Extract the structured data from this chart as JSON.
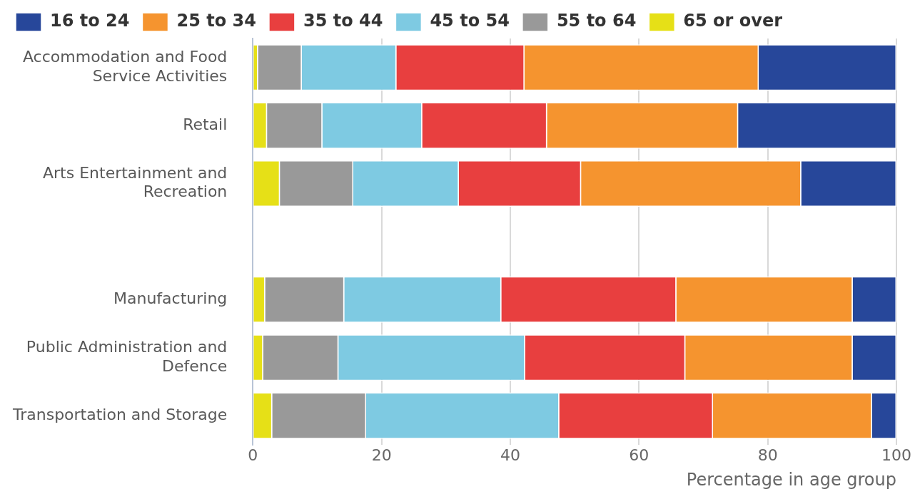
{
  "chart_data": {
    "type": "bar",
    "orientation": "horizontal",
    "stacked": true,
    "categories": [
      "Accommodation and Food Service Activities",
      "Retail",
      "Arts Entertainment and Recreation",
      null,
      "Manufacturing",
      "Public Administration and Defence",
      "Transportation and Storage"
    ],
    "series": [
      {
        "name": "65 or over",
        "color": "#e6e017",
        "values": [
          0.8,
          2.2,
          4.2,
          null,
          1.9,
          1.6,
          3.0
        ]
      },
      {
        "name": "55 to 64",
        "color": "#999999",
        "values": [
          6.8,
          8.6,
          11.4,
          null,
          12.3,
          11.7,
          14.6
        ]
      },
      {
        "name": "45 to 54",
        "color": "#7ecae2",
        "values": [
          14.7,
          15.5,
          16.4,
          null,
          24.4,
          29.0,
          30.0
        ]
      },
      {
        "name": "35 to 44",
        "color": "#e83f3f",
        "values": [
          19.9,
          19.4,
          19.0,
          null,
          27.2,
          24.9,
          23.9
        ]
      },
      {
        "name": "25 to 34",
        "color": "#f5942f",
        "values": [
          36.4,
          29.7,
          34.2,
          null,
          27.4,
          26.0,
          24.7
        ]
      },
      {
        "name": "16 to 24",
        "color": "#27479a",
        "values": [
          21.4,
          24.6,
          14.8,
          null,
          6.8,
          6.8,
          3.8
        ]
      }
    ],
    "xlabel": "Percentage in age group",
    "xlim": [
      0,
      100
    ],
    "xticks": [
      0,
      20,
      40,
      60,
      80,
      100
    ],
    "grid": "x",
    "legend": "top"
  }
}
